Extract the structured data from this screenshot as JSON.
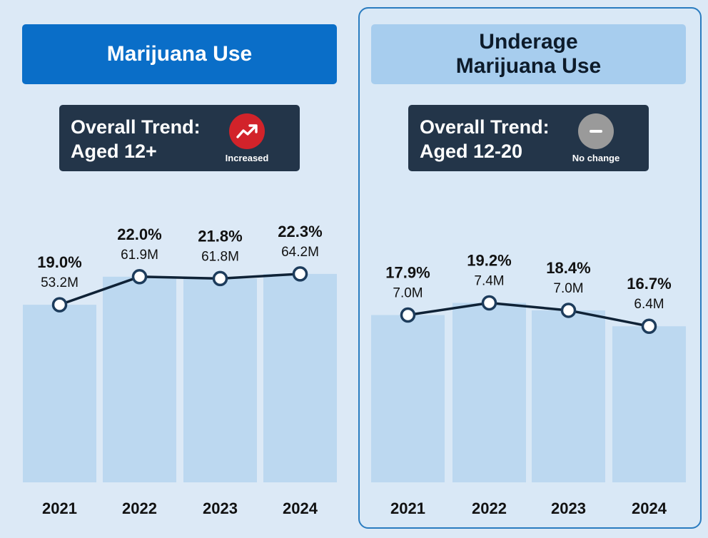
{
  "chart_data": [
    {
      "type": "bar",
      "title": "Marijuana Use",
      "trend_heading": "Overall Trend:",
      "trend_group": "Aged 12+",
      "trend_status": "Increased",
      "categories": [
        "2021",
        "2022",
        "2023",
        "2024"
      ],
      "values": [
        19.0,
        22.0,
        21.8,
        22.3
      ],
      "value_labels": [
        "19.0%",
        "22.0%",
        "21.8%",
        "22.3%"
      ],
      "counts": [
        "53.2M",
        "61.9M",
        "61.8M",
        "64.2M"
      ],
      "ylim": [
        0,
        30
      ],
      "colors": {
        "bar": "#bcd8f0",
        "line": "#0f2236",
        "badge": "#d2232a"
      }
    },
    {
      "type": "bar",
      "title": "Underage Marijuana Use",
      "trend_heading": "Overall Trend:",
      "trend_group": "Aged 12-20",
      "trend_status": "No change",
      "categories": [
        "2021",
        "2022",
        "2023",
        "2024"
      ],
      "values": [
        17.9,
        19.2,
        18.4,
        16.7
      ],
      "value_labels": [
        "17.9%",
        "19.2%",
        "18.4%",
        "16.7%"
      ],
      "counts": [
        "7.0M",
        "7.4M",
        "7.0M",
        "6.4M"
      ],
      "ylim": [
        0,
        30
      ],
      "colors": {
        "bar": "#bcd8f0",
        "line": "#0f2236",
        "badge": "#9a9a9a"
      }
    }
  ],
  "icons": {
    "increased": "trend-up-icon",
    "no_change": "minus-icon"
  }
}
